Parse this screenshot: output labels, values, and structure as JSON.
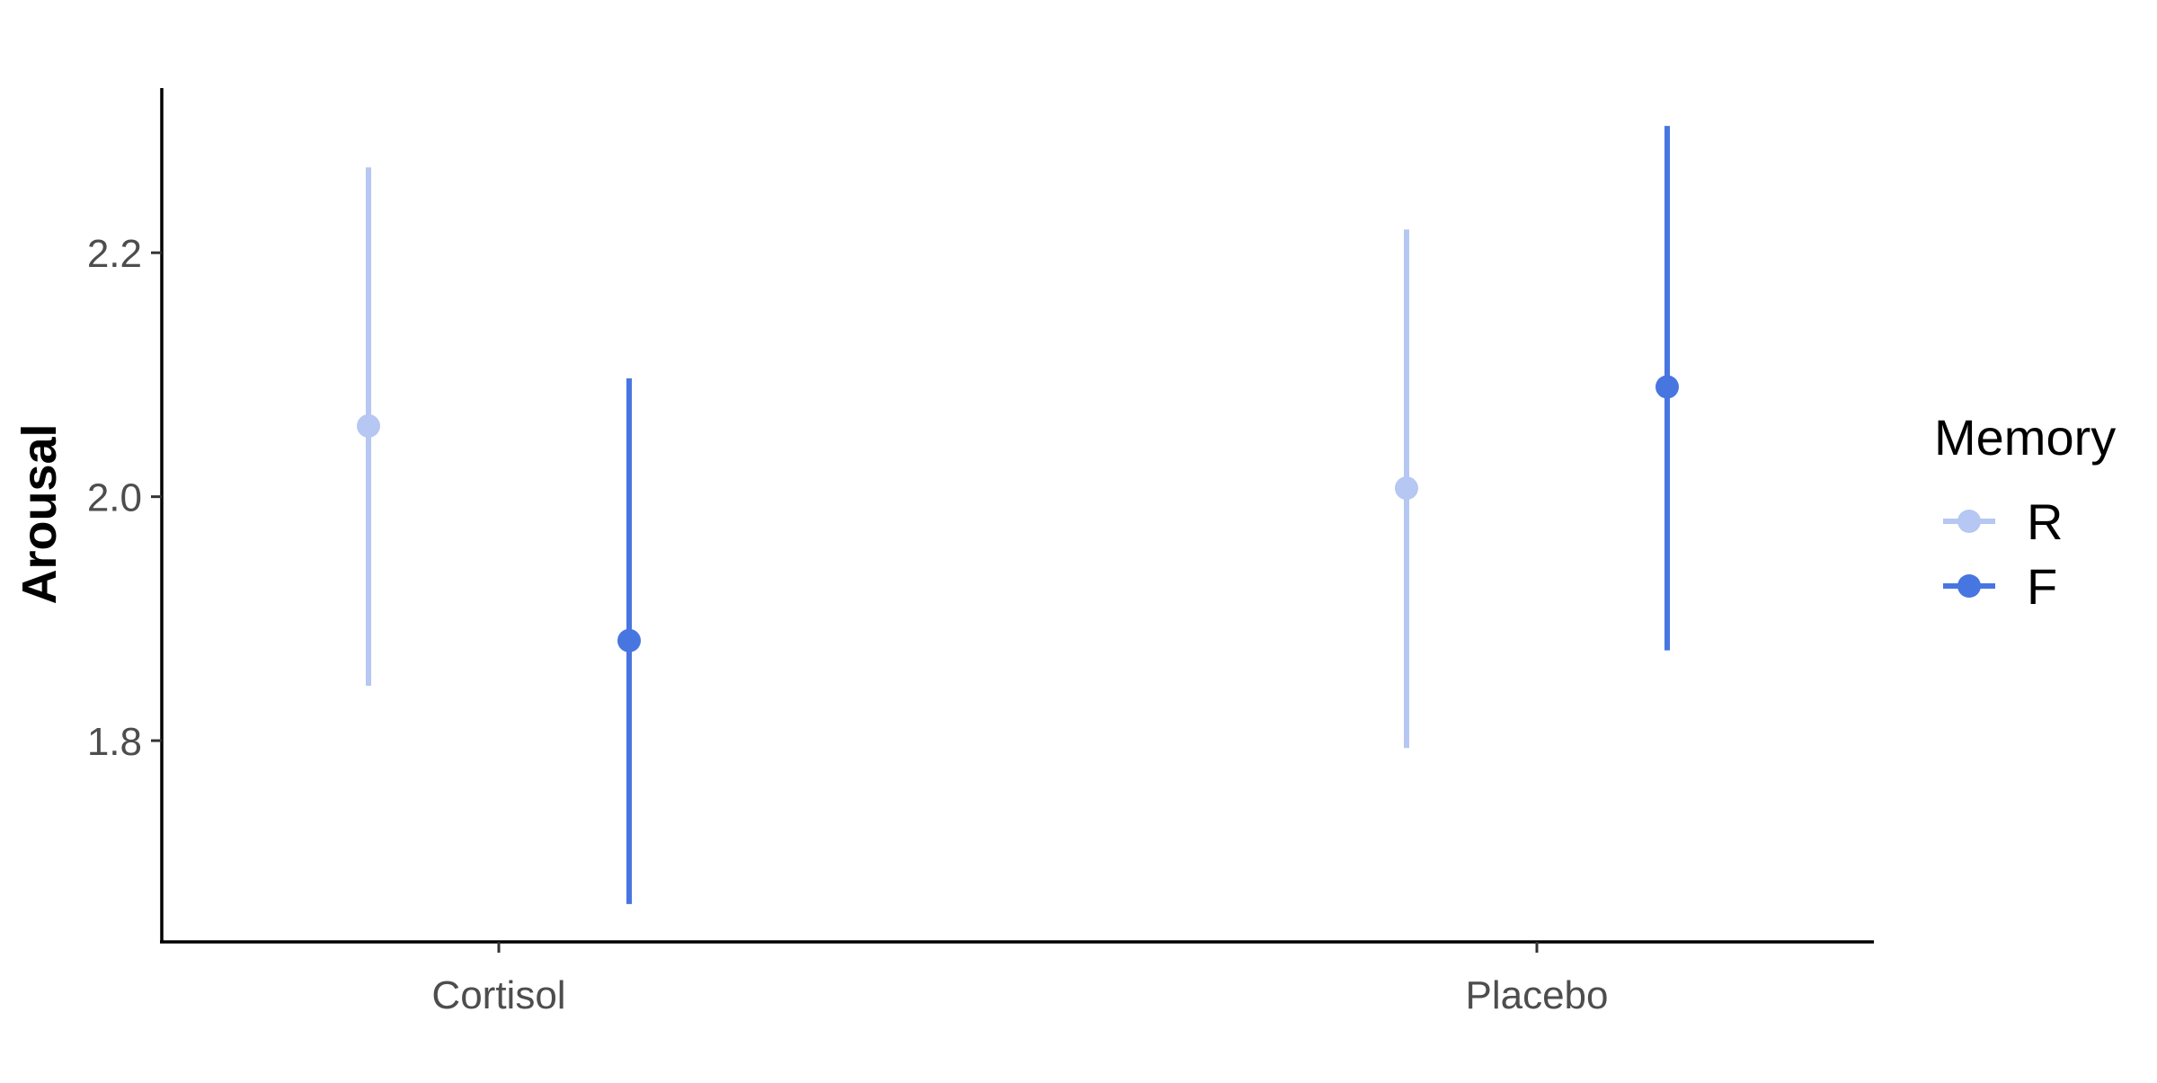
{
  "chart_data": {
    "type": "scatter",
    "subtype": "pointrange",
    "title": "",
    "xlabel": "",
    "ylabel": "Arousal",
    "categories": [
      "Cortisol",
      "Placebo"
    ],
    "ylim": [
      1.635,
      2.335
    ],
    "yticks": [
      1.8,
      2.0,
      2.2
    ],
    "ytick_labels": [
      "1.8",
      "2.0",
      "2.2"
    ],
    "grid": false,
    "legend": {
      "title": "Memory",
      "position": "right",
      "entries": [
        "R",
        "F"
      ]
    },
    "series": [
      {
        "name": "R",
        "color": "#4876e0",
        "opacity": 0.4,
        "points": [
          {
            "category": "Cortisol",
            "y": 2.058,
            "lower": 1.845,
            "upper": 2.27
          },
          {
            "category": "Placebo",
            "y": 2.007,
            "lower": 1.794,
            "upper": 2.219
          }
        ]
      },
      {
        "name": "F",
        "color": "#4876e0",
        "opacity": 1.0,
        "points": [
          {
            "category": "Cortisol",
            "y": 1.882,
            "lower": 1.666,
            "upper": 2.097
          },
          {
            "category": "Placebo",
            "y": 2.09,
            "lower": 1.874,
            "upper": 2.304
          }
        ]
      }
    ]
  }
}
